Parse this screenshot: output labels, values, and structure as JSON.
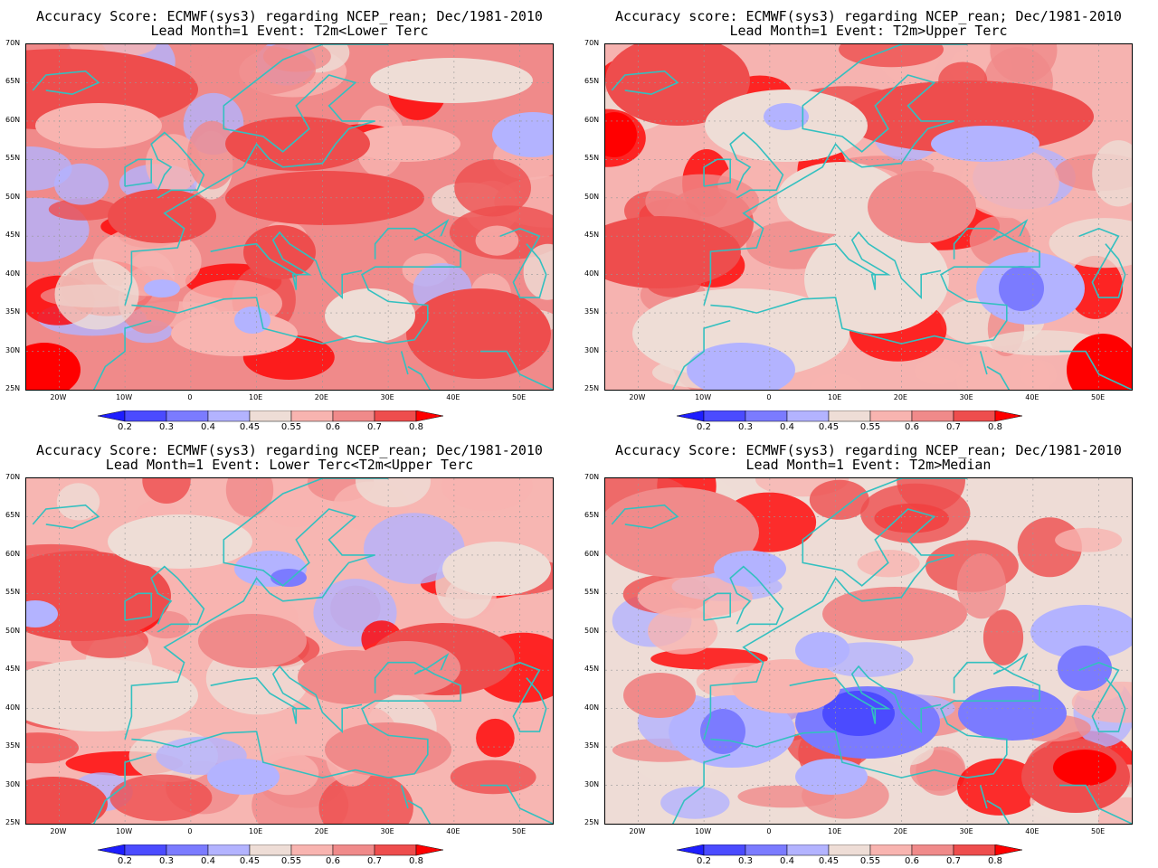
{
  "panels": [
    {
      "title_line1": "Accuracy Score: ECMWF(sys3) regarding NCEP_rean; Dec/1981-2010",
      "title_line2": "Lead Month=1 Event: T2m<Lower Terc",
      "base_color": "#f08a8a"
    },
    {
      "title_line1": "Accuracy score: ECMWF(sys3) regarding NCEP_rean; Dec/1981-2010",
      "title_line2": "Lead Month=1 Event: T2m>Upper Terc",
      "base_color": "#f6b3b0"
    },
    {
      "title_line1": "Accuracy Score: ECMWF(sys3) regarding NCEP_rean; Dec/1981-2010",
      "title_line2": "Lead Month=1 Event: Lower Terc<T2m<Upper Terc",
      "base_color": "#f7b6b2"
    },
    {
      "title_line1": "Accuracy Score: ECMWF(sys3) regarding NCEP_rean; Dec/1981-2010",
      "title_line2": "Lead Month=1 Event: T2m>Median",
      "base_color": "#eedcd6"
    }
  ],
  "lat_labels": [
    "70N",
    "65N",
    "60N",
    "55N",
    "50N",
    "45N",
    "40N",
    "35N",
    "30N",
    "25N"
  ],
  "lon_labels": [
    "20W",
    "10W",
    "0",
    "10E",
    "20E",
    "30E",
    "40E",
    "50E"
  ],
  "colorbar": {
    "labels": [
      "0.2",
      "0.3",
      "0.4",
      "0.45",
      "0.55",
      "0.6",
      "0.7",
      "0.8"
    ],
    "colors": [
      "#1e1eff",
      "#4b4bff",
      "#7b7bff",
      "#b3b3ff",
      "#eeddd6",
      "#f8b4b0",
      "#f08a8a",
      "#ee4d4d",
      "#ff0000"
    ]
  },
  "colors": {
    "coastline": "#33c0c0",
    "grid": "#999999"
  }
}
